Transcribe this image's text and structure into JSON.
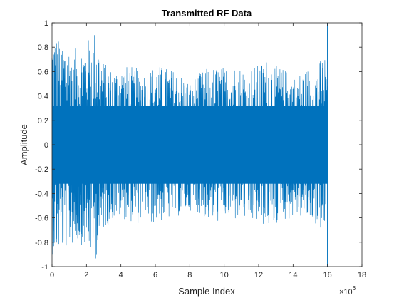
{
  "chart_data": {
    "type": "line",
    "title": "Transmitted RF Data",
    "xlabel": "Sample Index",
    "ylabel": "Amplitude",
    "x_exponent_label": "×10",
    "x_exponent_power": "6",
    "xlim": [
      0,
      18
    ],
    "ylim": [
      -1,
      1
    ],
    "x_scale_factor": 1000000,
    "x_ticks": [
      0,
      2,
      4,
      6,
      8,
      10,
      12,
      14,
      16,
      18
    ],
    "y_ticks": [
      -1,
      -0.8,
      -0.6,
      -0.4,
      -0.2,
      0,
      0.2,
      0.4,
      0.6,
      0.8,
      1
    ],
    "x_tick_labels": [
      "0",
      "2",
      "4",
      "6",
      "8",
      "10",
      "12",
      "14",
      "16",
      "18"
    ],
    "y_tick_labels": [
      "-1",
      "-0.8",
      "-0.6",
      "-0.4",
      "-0.2",
      "0",
      "0.2",
      "0.4",
      "0.6",
      "0.8",
      "1"
    ],
    "grid": false,
    "series": [
      {
        "color": "#0072BD",
        "x_range": [
          0,
          16
        ],
        "envelope": {
          "x": [
            0,
            0.5,
            1,
            1.5,
            2,
            2.5,
            3,
            3.5,
            4,
            4.5,
            5,
            5.5,
            6,
            6.5,
            7,
            7.5,
            8,
            8.5,
            9,
            9.5,
            10,
            10.5,
            11,
            11.5,
            12,
            12.5,
            13,
            13.5,
            14,
            14.5,
            15,
            15.5,
            16
          ],
          "upper": [
            0.92,
            0.88,
            0.82,
            0.78,
            0.85,
            0.95,
            0.68,
            0.62,
            0.64,
            0.65,
            0.63,
            0.6,
            0.66,
            0.64,
            0.62,
            0.58,
            0.52,
            0.58,
            0.63,
            0.64,
            0.64,
            0.66,
            0.64,
            0.63,
            0.66,
            0.71,
            0.66,
            0.62,
            0.6,
            0.59,
            0.65,
            0.68,
            0.78
          ],
          "lower": [
            -0.9,
            -0.88,
            -0.84,
            -0.8,
            -0.85,
            -0.96,
            -0.7,
            -0.62,
            -0.6,
            -0.63,
            -0.65,
            -0.66,
            -0.65,
            -0.62,
            -0.61,
            -0.58,
            -0.54,
            -0.56,
            -0.62,
            -0.65,
            -0.6,
            -0.63,
            -0.62,
            -0.64,
            -0.65,
            -0.68,
            -0.66,
            -0.62,
            -0.61,
            -0.6,
            -0.63,
            -0.68,
            -0.8
          ]
        }
      }
    ]
  }
}
